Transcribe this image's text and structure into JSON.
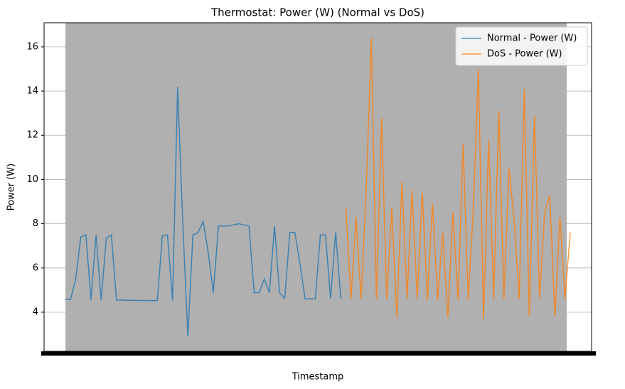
{
  "chart_data": {
    "type": "line",
    "title": "Thermostat: Power (W) (Normal vs DoS)",
    "x_label": "Timestamp",
    "y_label": "Power (W)",
    "xlim": [
      -4.2,
      103.2
    ],
    "ylim": [
      2.23,
      17.09
    ],
    "yticks": [
      4,
      6,
      8,
      10,
      12,
      14,
      16
    ],
    "grid": true,
    "legend": "upper right",
    "series": [
      {
        "name": "Normal - Power (W)",
        "color": "#1f77b4",
        "values": [
          4.58,
          4.57,
          5.5,
          7.4,
          7.5,
          4.56,
          7.5,
          4.55,
          7.35,
          7.5,
          4.55,
          4.55,
          4.54,
          4.54,
          4.53,
          4.53,
          4.53,
          4.52,
          4.52,
          7.45,
          7.5,
          4.52,
          14.2,
          8.1,
          2.9,
          7.5,
          7.6,
          8.1,
          6.7,
          4.88,
          7.9,
          7.9,
          7.9,
          7.95,
          8.0,
          7.95,
          7.9,
          4.88,
          4.88,
          5.5,
          4.88,
          7.9,
          4.88,
          4.62,
          7.6,
          7.6,
          6.2,
          4.6,
          4.6,
          4.6,
          7.5,
          7.5,
          4.62,
          7.6,
          4.62,
          null,
          null,
          null,
          null,
          null,
          null,
          null,
          null,
          null,
          null,
          null,
          null,
          null,
          null,
          null,
          null,
          null,
          null,
          null,
          null,
          null,
          null,
          null,
          null,
          null,
          null,
          null,
          null,
          null,
          null,
          null,
          null,
          null,
          null,
          null,
          null,
          null,
          null,
          null,
          null,
          null,
          null,
          null,
          null,
          null
        ]
      },
      {
        "name": "DoS - Power (W)",
        "color": "#ff7f0e",
        "values": [
          null,
          null,
          null,
          null,
          null,
          null,
          null,
          null,
          null,
          null,
          null,
          null,
          null,
          null,
          null,
          null,
          null,
          null,
          null,
          null,
          null,
          null,
          null,
          null,
          null,
          null,
          null,
          null,
          null,
          null,
          null,
          null,
          null,
          null,
          null,
          null,
          null,
          null,
          null,
          null,
          null,
          null,
          null,
          null,
          null,
          null,
          null,
          null,
          null,
          null,
          null,
          null,
          null,
          null,
          null,
          8.7,
          4.6,
          8.3,
          4.6,
          9.6,
          16.4,
          4.6,
          12.8,
          4.6,
          8.7,
          3.75,
          9.9,
          4.6,
          9.5,
          4.6,
          9.4,
          4.55,
          8.9,
          4.55,
          7.6,
          3.75,
          8.5,
          4.55,
          11.6,
          4.55,
          8.7,
          15.0,
          3.7,
          11.8,
          4.6,
          13.1,
          4.6,
          10.5,
          8.2,
          4.6,
          14.1,
          3.8,
          12.9,
          4.6,
          8.5,
          9.3,
          3.8,
          8.3,
          4.6,
          7.6
        ]
      }
    ]
  }
}
